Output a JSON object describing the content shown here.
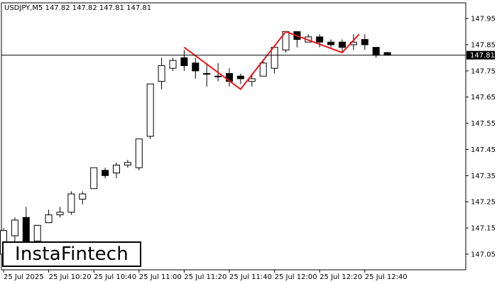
{
  "brand": {
    "name": "InstaFintech"
  },
  "chart_data": {
    "type": "candlestick",
    "title": "USDJPY,M5  147.82 147.82 147.81 147.81",
    "symbol": "USDJPY,M5",
    "ohlc_header": "147.82 147.82 147.81 147.81",
    "current_price": 147.81,
    "current_price_label": "147.81",
    "ylim": [
      146.99,
      148.01
    ],
    "y_ticks": [
      "147.95",
      "147.85",
      "147.75",
      "147.65",
      "147.55",
      "147.45",
      "147.35",
      "147.25",
      "147.15",
      "147.05"
    ],
    "x_tick_labels": [
      "25 Jul 2025",
      "25 Jul 10:20",
      "25 Jul 10:40",
      "25 Jul 11:00",
      "25 Jul 11:20",
      "25 Jul 11:40",
      "25 Jul 12:00",
      "25 Jul 12:20",
      "25 Jul 12:40"
    ],
    "x_tick_bar_index": [
      0,
      4,
      8,
      12,
      16,
      20,
      24,
      28,
      32
    ],
    "candles": [
      {
        "o": 147.05,
        "h": 147.15,
        "l": 147.02,
        "c": 147.14
      },
      {
        "o": 147.12,
        "h": 147.19,
        "l": 147.09,
        "c": 147.18
      },
      {
        "o": 147.19,
        "h": 147.23,
        "l": 147.08,
        "c": 147.1
      },
      {
        "o": 147.1,
        "h": 147.16,
        "l": 147.05,
        "c": 147.16
      },
      {
        "o": 147.17,
        "h": 147.22,
        "l": 147.17,
        "c": 147.2
      },
      {
        "o": 147.2,
        "h": 147.23,
        "l": 147.19,
        "c": 147.21
      },
      {
        "o": 147.21,
        "h": 147.29,
        "l": 147.2,
        "c": 147.28
      },
      {
        "o": 147.26,
        "h": 147.29,
        "l": 147.24,
        "c": 147.28
      },
      {
        "o": 147.3,
        "h": 147.38,
        "l": 147.3,
        "c": 147.38
      },
      {
        "o": 147.37,
        "h": 147.38,
        "l": 147.34,
        "c": 147.35
      },
      {
        "o": 147.36,
        "h": 147.4,
        "l": 147.34,
        "c": 147.39
      },
      {
        "o": 147.39,
        "h": 147.41,
        "l": 147.38,
        "c": 147.4
      },
      {
        "o": 147.38,
        "h": 147.49,
        "l": 147.37,
        "c": 147.49
      },
      {
        "o": 147.5,
        "h": 147.7,
        "l": 147.49,
        "c": 147.7
      },
      {
        "o": 147.71,
        "h": 147.8,
        "l": 147.68,
        "c": 147.77
      },
      {
        "o": 147.76,
        "h": 147.8,
        "l": 147.75,
        "c": 147.79
      },
      {
        "o": 147.8,
        "h": 147.83,
        "l": 147.75,
        "c": 147.77
      },
      {
        "o": 147.78,
        "h": 147.8,
        "l": 147.72,
        "c": 147.75
      },
      {
        "o": 147.74,
        "h": 147.78,
        "l": 147.69,
        "c": 147.74
      },
      {
        "o": 147.73,
        "h": 147.78,
        "l": 147.71,
        "c": 147.73
      },
      {
        "o": 147.74,
        "h": 147.76,
        "l": 147.69,
        "c": 147.71
      },
      {
        "o": 147.73,
        "h": 147.74,
        "l": 147.7,
        "c": 147.72
      },
      {
        "o": 147.71,
        "h": 147.74,
        "l": 147.69,
        "c": 147.72
      },
      {
        "o": 147.73,
        "h": 147.79,
        "l": 147.73,
        "c": 147.78
      },
      {
        "o": 147.76,
        "h": 147.84,
        "l": 147.74,
        "c": 147.84
      },
      {
        "o": 147.83,
        "h": 147.9,
        "l": 147.82,
        "c": 147.9
      },
      {
        "o": 147.9,
        "h": 147.9,
        "l": 147.84,
        "c": 147.87
      },
      {
        "o": 147.86,
        "h": 147.89,
        "l": 147.86,
        "c": 147.88
      },
      {
        "o": 147.88,
        "h": 147.89,
        "l": 147.84,
        "c": 147.86
      },
      {
        "o": 147.86,
        "h": 147.87,
        "l": 147.84,
        "c": 147.85
      },
      {
        "o": 147.86,
        "h": 147.87,
        "l": 147.82,
        "c": 147.84
      },
      {
        "o": 147.85,
        "h": 147.89,
        "l": 147.83,
        "c": 147.86
      },
      {
        "o": 147.87,
        "h": 147.89,
        "l": 147.83,
        "c": 147.85
      },
      {
        "o": 147.84,
        "h": 147.84,
        "l": 147.8,
        "c": 147.81
      },
      {
        "o": 147.82,
        "h": 147.82,
        "l": 147.81,
        "c": 147.81
      }
    ],
    "pattern_points": [
      {
        "bar": 16,
        "price": 147.84
      },
      {
        "bar": 21,
        "price": 147.68
      },
      {
        "bar": 25,
        "price": 147.9
      },
      {
        "bar": 30,
        "price": 147.82
      },
      {
        "bar": 31.5,
        "price": 147.89
      }
    ],
    "colors": {
      "background": "#ffffff",
      "bull_fill": "#ffffff",
      "bear_fill": "#000000",
      "candle_outline": "#000000",
      "pattern_line": "#e8141a",
      "price_line": "#000000",
      "price_label_bg": "#000000",
      "price_label_text": "#ffffff"
    }
  }
}
